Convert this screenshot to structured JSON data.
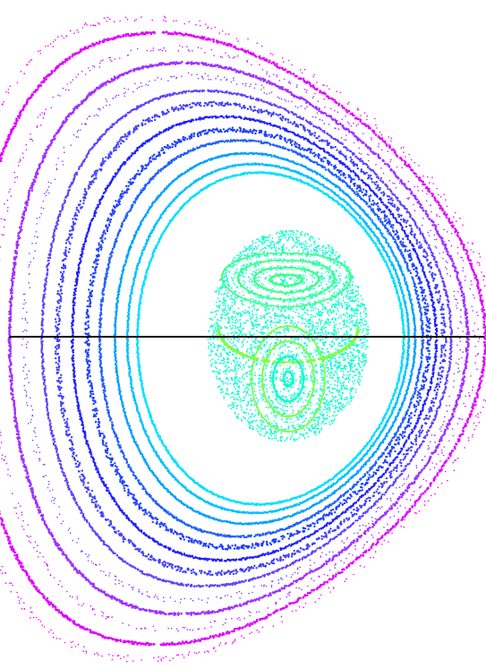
{
  "figure": {
    "type": "poincare-section",
    "background": "#ffffff",
    "midplane_color": "#000000",
    "flux_surface_colors": {
      "outer": [
        "#ff00ff",
        "#e000ff",
        "#c020ff",
        "#a030ff",
        "#8040ff"
      ],
      "middle": [
        "#6040ff",
        "#4040ff",
        "#2020ff",
        "#2040ff",
        "#2060ff"
      ],
      "inner": [
        "#00a0ff",
        "#00c0ff",
        "#00e0ff"
      ],
      "island": [
        "#00ffcc",
        "#40ff80",
        "#80ff40"
      ]
    },
    "magnetic_islands": 2
  }
}
